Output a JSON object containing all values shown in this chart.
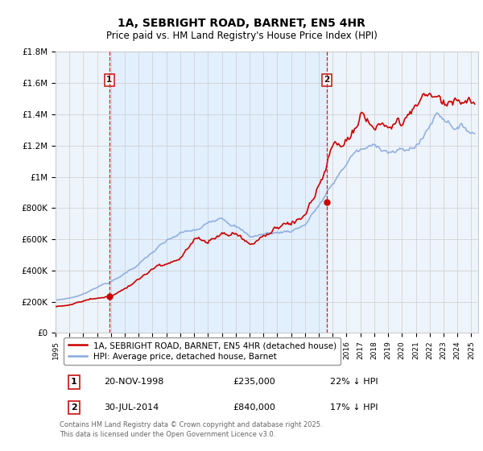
{
  "title": "1A, SEBRIGHT ROAD, BARNET, EN5 4HR",
  "subtitle": "Price paid vs. HM Land Registry's House Price Index (HPI)",
  "ylim": [
    0,
    1800000
  ],
  "yticks": [
    0,
    200000,
    400000,
    600000,
    800000,
    1000000,
    1200000,
    1400000,
    1600000,
    1800000
  ],
  "ytick_labels": [
    "£0",
    "£200K",
    "£400K",
    "£600K",
    "£800K",
    "£1M",
    "£1.2M",
    "£1.4M",
    "£1.6M",
    "£1.8M"
  ],
  "xlim_start": 1995.0,
  "xlim_end": 2025.5,
  "sale1_x": 1998.88,
  "sale1_y": 235000,
  "sale1_label": "1",
  "sale2_x": 2014.58,
  "sale2_y": 840000,
  "sale2_label": "2",
  "vline1_x": 1998.88,
  "vline2_x": 2014.58,
  "red_line_color": "#cc0000",
  "blue_line_color": "#88aadd",
  "vline_color": "#cc2222",
  "shade_color": "#ddeeff",
  "grid_color": "#cccccc",
  "background_color": "#eef4fb",
  "legend_label_red": "1A, SEBRIGHT ROAD, BARNET, EN5 4HR (detached house)",
  "legend_label_blue": "HPI: Average price, detached house, Barnet",
  "table_row1": [
    "1",
    "20-NOV-1998",
    "£235,000",
    "22% ↓ HPI"
  ],
  "table_row2": [
    "2",
    "30-JUL-2014",
    "£840,000",
    "17% ↓ HPI"
  ],
  "footnote": "Contains HM Land Registry data © Crown copyright and database right 2025.\nThis data is licensed under the Open Government Licence v3.0."
}
